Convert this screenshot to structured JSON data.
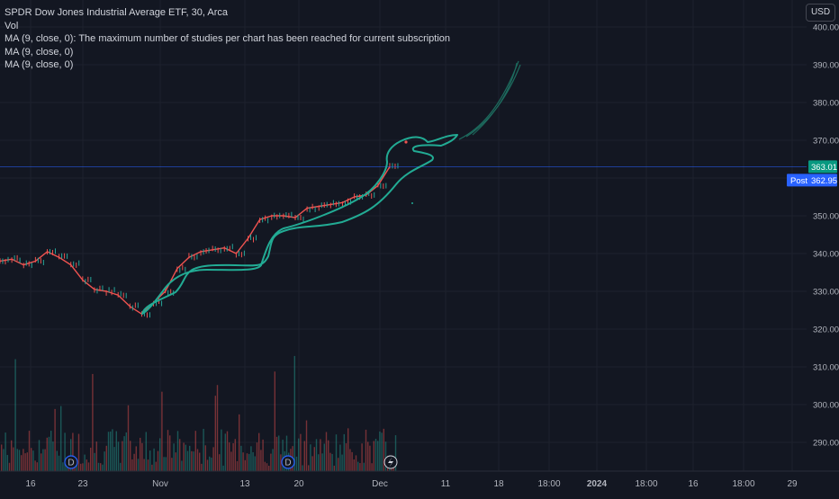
{
  "legend": {
    "symbol_line": "SPDR Dow Jones Industrial Average ETF, 30, Arca",
    "vol_label": "Vol",
    "ma_lines": [
      "MA (9, close, 0): The maximum number of studies per chart has been reached for current subscription",
      "MA (9, close, 0)",
      "MA (9, close, 0)"
    ]
  },
  "currency_button": "USD",
  "price_axis": {
    "ticks": [
      "400.00",
      "390.00",
      "380.00",
      "370.00",
      "350.00",
      "340.00",
      "330.00",
      "320.00",
      "310.00",
      "300.00",
      "290.00"
    ],
    "last_price": "363.01",
    "post_label": "Post",
    "post_price": "362.95"
  },
  "time_axis": {
    "labels": [
      "16",
      "23",
      "Nov",
      "13",
      "20",
      "Dec",
      "11",
      "18",
      "18:00",
      "2024",
      "18:00",
      "16",
      "18:00",
      "29"
    ]
  },
  "event_badges": [
    "D",
    "D"
  ],
  "colors": {
    "background": "#131722",
    "up": "#26a69a",
    "down": "#ef5350",
    "drawing": "#22ab94",
    "last_price_tag": "#089981",
    "post_tag": "#2962ff"
  },
  "chart_data": {
    "type": "line",
    "title": "SPDR Dow Jones Industrial Average ETF, 30, Arca",
    "ylim": [
      285,
      402
    ],
    "x_ticks": [
      "16",
      "23",
      "Nov",
      "13",
      "20",
      "Dec",
      "11",
      "18",
      "18:00",
      "2024",
      "18:00",
      "16",
      "18:00",
      "29"
    ],
    "price_series": [
      [
        0,
        338
      ],
      [
        0.04,
        338.5
      ],
      [
        0.08,
        337
      ],
      [
        0.12,
        338
      ],
      [
        0.16,
        340.5
      ],
      [
        0.2,
        339
      ],
      [
        0.24,
        337
      ],
      [
        0.28,
        333
      ],
      [
        0.32,
        330.5
      ],
      [
        0.36,
        330
      ],
      [
        0.4,
        329
      ],
      [
        0.44,
        326
      ],
      [
        0.48,
        324
      ],
      [
        0.52,
        327
      ],
      [
        0.56,
        330
      ],
      [
        0.6,
        336
      ],
      [
        0.64,
        339
      ],
      [
        0.68,
        340.5
      ],
      [
        0.72,
        341
      ],
      [
        0.76,
        341.5
      ],
      [
        0.8,
        340
      ],
      [
        0.84,
        344
      ],
      [
        0.88,
        349
      ],
      [
        0.92,
        350
      ],
      [
        0.96,
        350
      ],
      [
        1.0,
        349.5
      ],
      [
        1.04,
        352
      ],
      [
        1.08,
        352.5
      ],
      [
        1.12,
        353
      ],
      [
        1.16,
        353.5
      ],
      [
        1.2,
        355
      ],
      [
        1.24,
        355.5
      ],
      [
        1.28,
        358
      ],
      [
        1.32,
        363
      ]
    ],
    "volume_profile": "bars along the bottom, up to mid-November heavier"
  }
}
